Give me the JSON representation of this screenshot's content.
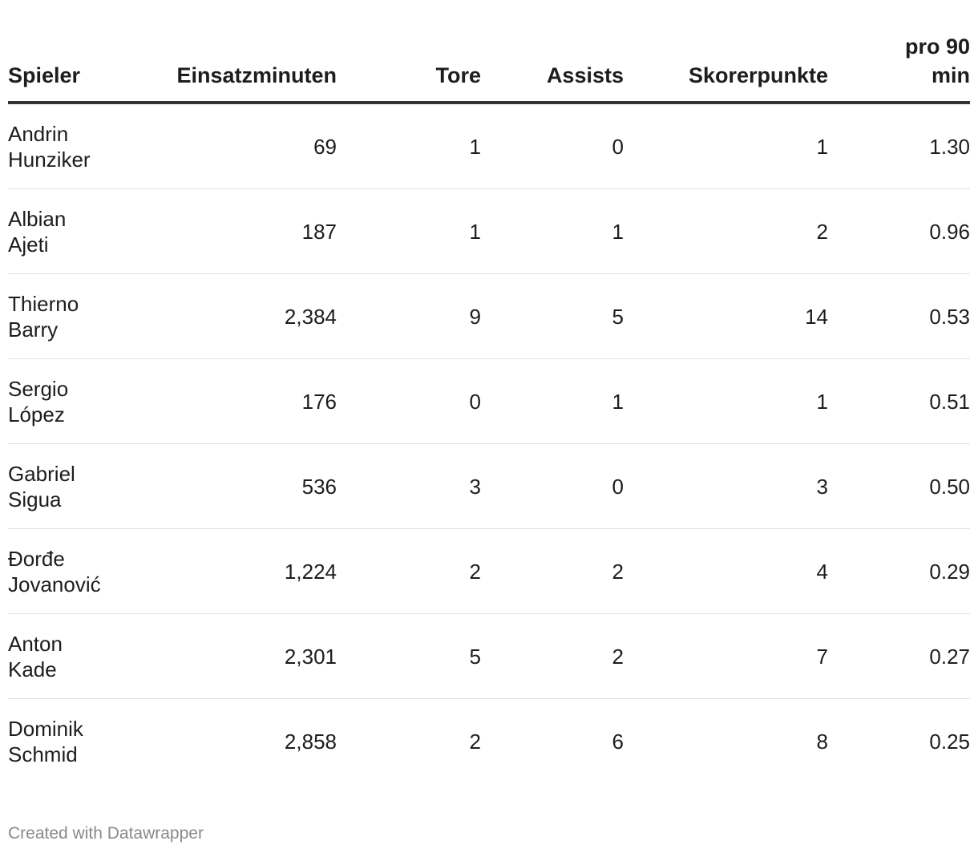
{
  "table": {
    "headers": {
      "player": "Spieler",
      "minutes": "Einsatzminuten",
      "goals": "Tore",
      "assists": "Assists",
      "points": "Skorerpunkte",
      "per90_line1": "pro 90",
      "per90_line2": "min"
    },
    "rows": [
      {
        "first": "Andrin",
        "last": "Hunziker",
        "minutes": "69",
        "goals": "1",
        "assists": "0",
        "points": "1",
        "per90": "1.30"
      },
      {
        "first": "Albian",
        "last": "Ajeti",
        "minutes": "187",
        "goals": "1",
        "assists": "1",
        "points": "2",
        "per90": "0.96"
      },
      {
        "first": "Thierno",
        "last": "Barry",
        "minutes": "2,384",
        "goals": "9",
        "assists": "5",
        "points": "14",
        "per90": "0.53"
      },
      {
        "first": "Sergio",
        "last": "López",
        "minutes": "176",
        "goals": "0",
        "assists": "1",
        "points": "1",
        "per90": "0.51"
      },
      {
        "first": "Gabriel",
        "last": "Sigua",
        "minutes": "536",
        "goals": "3",
        "assists": "0",
        "points": "3",
        "per90": "0.50"
      },
      {
        "first": "Đorđe",
        "last": "Jovanović",
        "minutes": "1,224",
        "goals": "2",
        "assists": "2",
        "points": "4",
        "per90": "0.29"
      },
      {
        "first": "Anton",
        "last": "Kade",
        "minutes": "2,301",
        "goals": "5",
        "assists": "2",
        "points": "7",
        "per90": "0.27"
      },
      {
        "first": "Dominik",
        "last": "Schmid",
        "minutes": "2,858",
        "goals": "2",
        "assists": "6",
        "points": "8",
        "per90": "0.25"
      }
    ]
  },
  "footer": {
    "credit": "Created with Datawrapper"
  },
  "chart_data": {
    "type": "table",
    "columns": [
      "Spieler",
      "Einsatzminuten",
      "Tore",
      "Assists",
      "Skorerpunkte",
      "pro 90 min"
    ],
    "rows": [
      [
        "Andrin Hunziker",
        69,
        1,
        0,
        1,
        1.3
      ],
      [
        "Albian Ajeti",
        187,
        1,
        1,
        2,
        0.96
      ],
      [
        "Thierno Barry",
        2384,
        9,
        5,
        14,
        0.53
      ],
      [
        "Sergio López",
        176,
        0,
        1,
        1,
        0.51
      ],
      [
        "Gabriel Sigua",
        536,
        3,
        0,
        3,
        0.5
      ],
      [
        "Đorđe Jovanović",
        1224,
        2,
        2,
        4,
        0.29
      ],
      [
        "Anton Kade",
        2301,
        5,
        2,
        7,
        0.27
      ],
      [
        "Dominik Schmid",
        2858,
        2,
        6,
        8,
        0.25
      ]
    ]
  }
}
